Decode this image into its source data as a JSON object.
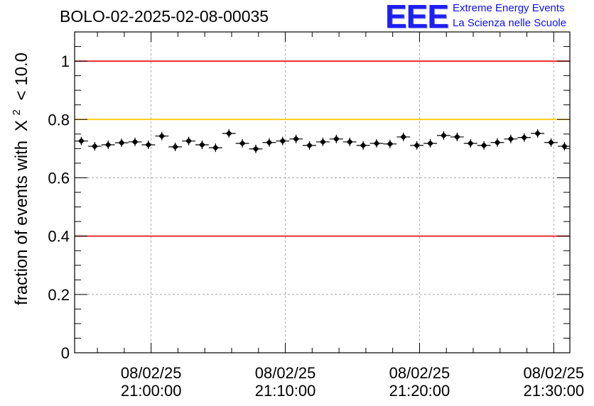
{
  "chart_data": {
    "type": "scatter",
    "title": "BOLO-02-2025-02-08-00035",
    "ylabel_prefix": "fraction of events with",
    "ylabel_symbol": "X",
    "ylabel_sup": "2",
    "ylabel_suffix": "< 10.0",
    "xlabel": "",
    "ylim": [
      0,
      1.1
    ],
    "x_minutes_range": [
      54.3,
      91.2
    ],
    "y_ticks": [
      {
        "value": 0,
        "label": "0"
      },
      {
        "value": 0.2,
        "label": "0.2"
      },
      {
        "value": 0.4,
        "label": "0.4"
      },
      {
        "value": 0.6,
        "label": "0.6"
      },
      {
        "value": 0.8,
        "label": "0.8"
      },
      {
        "value": 1,
        "label": "1"
      }
    ],
    "x_ticks": [
      {
        "minutes": 60,
        "date": "08/02/25",
        "time": "21:00:00"
      },
      {
        "minutes": 70,
        "date": "08/02/25",
        "time": "21:10:00"
      },
      {
        "minutes": 80,
        "date": "08/02/25",
        "time": "21:20:00"
      },
      {
        "minutes": 90,
        "date": "08/02/25",
        "time": "21:30:00"
      }
    ],
    "reference_lines": [
      {
        "value": 1.0,
        "color": "#e8141c"
      },
      {
        "value": 0.8,
        "color": "#ffc800"
      },
      {
        "value": 0.4,
        "color": "#e8141c"
      }
    ],
    "bin_width_minutes": 1.0,
    "points": [
      {
        "x": 54.8,
        "y": 0.726
      },
      {
        "x": 55.8,
        "y": 0.708
      },
      {
        "x": 56.8,
        "y": 0.713
      },
      {
        "x": 57.8,
        "y": 0.72
      },
      {
        "x": 58.8,
        "y": 0.723
      },
      {
        "x": 59.8,
        "y": 0.713
      },
      {
        "x": 60.8,
        "y": 0.743
      },
      {
        "x": 61.8,
        "y": 0.706
      },
      {
        "x": 62.8,
        "y": 0.726
      },
      {
        "x": 63.8,
        "y": 0.713
      },
      {
        "x": 64.8,
        "y": 0.703
      },
      {
        "x": 65.8,
        "y": 0.752
      },
      {
        "x": 66.8,
        "y": 0.718
      },
      {
        "x": 67.8,
        "y": 0.699
      },
      {
        "x": 68.8,
        "y": 0.721
      },
      {
        "x": 69.8,
        "y": 0.726
      },
      {
        "x": 70.8,
        "y": 0.733
      },
      {
        "x": 71.8,
        "y": 0.711
      },
      {
        "x": 72.8,
        "y": 0.723
      },
      {
        "x": 73.8,
        "y": 0.733
      },
      {
        "x": 74.8,
        "y": 0.723
      },
      {
        "x": 75.8,
        "y": 0.711
      },
      {
        "x": 76.8,
        "y": 0.718
      },
      {
        "x": 77.8,
        "y": 0.716
      },
      {
        "x": 78.8,
        "y": 0.74
      },
      {
        "x": 79.8,
        "y": 0.711
      },
      {
        "x": 80.8,
        "y": 0.718
      },
      {
        "x": 81.8,
        "y": 0.745
      },
      {
        "x": 82.8,
        "y": 0.74
      },
      {
        "x": 83.8,
        "y": 0.718
      },
      {
        "x": 84.8,
        "y": 0.711
      },
      {
        "x": 85.8,
        "y": 0.721
      },
      {
        "x": 86.8,
        "y": 0.733
      },
      {
        "x": 87.8,
        "y": 0.738
      },
      {
        "x": 88.8,
        "y": 0.752
      },
      {
        "x": 89.8,
        "y": 0.721
      },
      {
        "x": 90.8,
        "y": 0.708
      }
    ]
  },
  "logo": {
    "mark": "EEE",
    "line1": "Extreme Energy Events",
    "line2": "La Scienza nelle Scuole",
    "color": "#1010ee"
  }
}
